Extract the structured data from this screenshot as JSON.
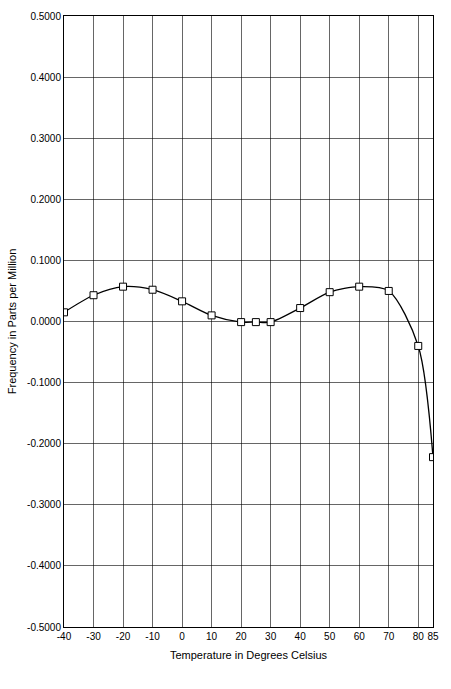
{
  "chart_data": {
    "type": "line",
    "x_label": "Temperature in Degrees Celsius",
    "y_label": "Frequency in Parts per Million",
    "x": [
      -40,
      -30,
      -20,
      -10,
      0,
      10,
      20,
      25,
      30,
      40,
      50,
      60,
      70,
      80,
      85
    ],
    "series": [
      {
        "color": "#000000",
        "marker": "square",
        "line_style": "spline",
        "values": [
          0.015,
          0.043,
          0.057,
          0.052,
          0.033,
          0.01,
          -0.001,
          -0.001,
          -0.001,
          0.022,
          0.048,
          0.057,
          0.05,
          -0.04,
          -0.222
        ]
      }
    ],
    "xlim": [
      -40,
      85
    ],
    "xticks": [
      -40,
      -30,
      -20,
      -10,
      0,
      10,
      20,
      30,
      40,
      50,
      60,
      70,
      80,
      85
    ],
    "ylim": [
      -0.5,
      0.5
    ],
    "yticks": [
      {
        "value": -0.5,
        "label": "-0.5000"
      },
      {
        "value": -0.4,
        "label": "-0.4000"
      },
      {
        "value": -0.3,
        "label": "-0.3000"
      },
      {
        "value": -0.2,
        "label": "-0.2000"
      },
      {
        "value": -0.1,
        "label": "-0.1000"
      },
      {
        "value": 0,
        "label": "0.0000"
      },
      {
        "value": 0.1,
        "label": "0.1000"
      },
      {
        "value": 0.2,
        "label": "0.2000"
      },
      {
        "value": 0.3,
        "label": "0.3000"
      },
      {
        "value": 0.4,
        "label": "0.4000"
      },
      {
        "value": 0.5,
        "label": "0.5000"
      }
    ],
    "grid": true
  }
}
